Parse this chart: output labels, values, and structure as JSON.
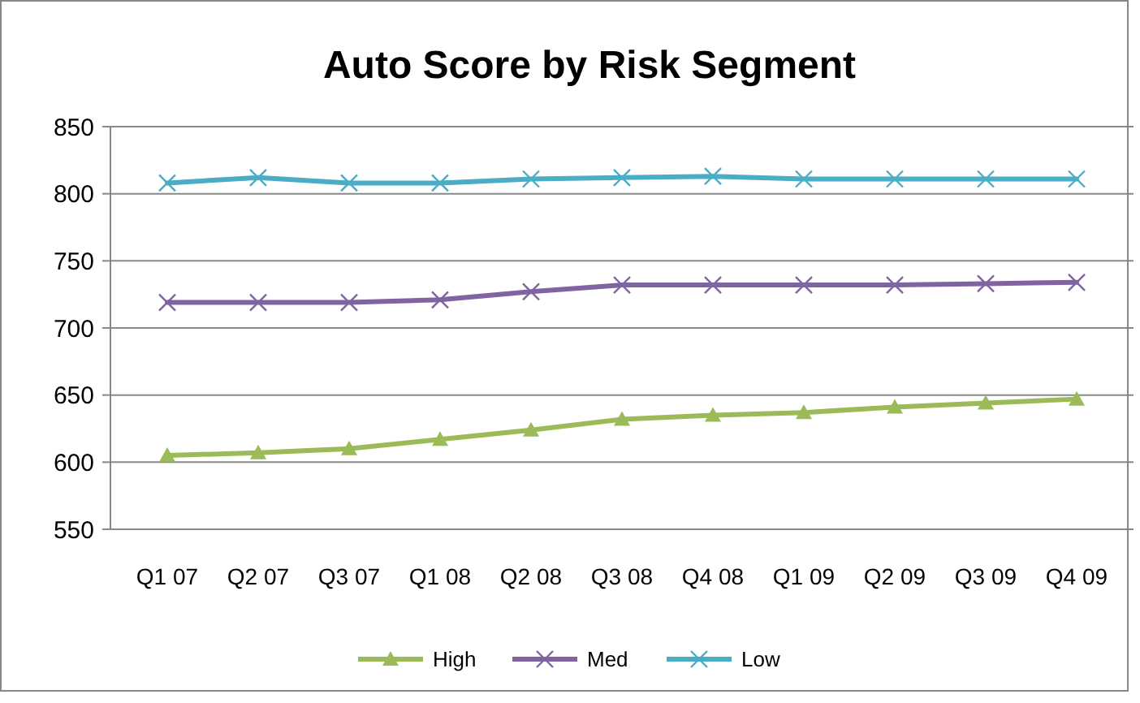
{
  "chart_data": {
    "type": "line",
    "title": "Auto Score by Risk Segment",
    "categories": [
      "Q1 07",
      "Q2 07",
      "Q3 07",
      "Q1 08",
      "Q2 08",
      "Q3 08",
      "Q4 08",
      "Q1 09",
      "Q2 09",
      "Q3 09",
      "Q4 09"
    ],
    "series": [
      {
        "name": "High",
        "color": "#9bbb59",
        "marker": "triangle",
        "values": [
          605,
          607,
          610,
          617,
          624,
          632,
          635,
          637,
          641,
          644,
          647
        ]
      },
      {
        "name": "Med",
        "color": "#8064a2",
        "marker": "cross",
        "values": [
          719,
          719,
          719,
          721,
          727,
          732,
          732,
          732,
          732,
          733,
          734
        ]
      },
      {
        "name": "Low",
        "color": "#4bacc6",
        "marker": "cross",
        "values": [
          808,
          812,
          808,
          808,
          811,
          812,
          813,
          811,
          811,
          811,
          811
        ]
      }
    ],
    "ylim": [
      550,
      850
    ],
    "yticks": [
      550,
      600,
      650,
      700,
      750,
      800,
      850
    ],
    "grid": "y",
    "legend": "bottom"
  }
}
